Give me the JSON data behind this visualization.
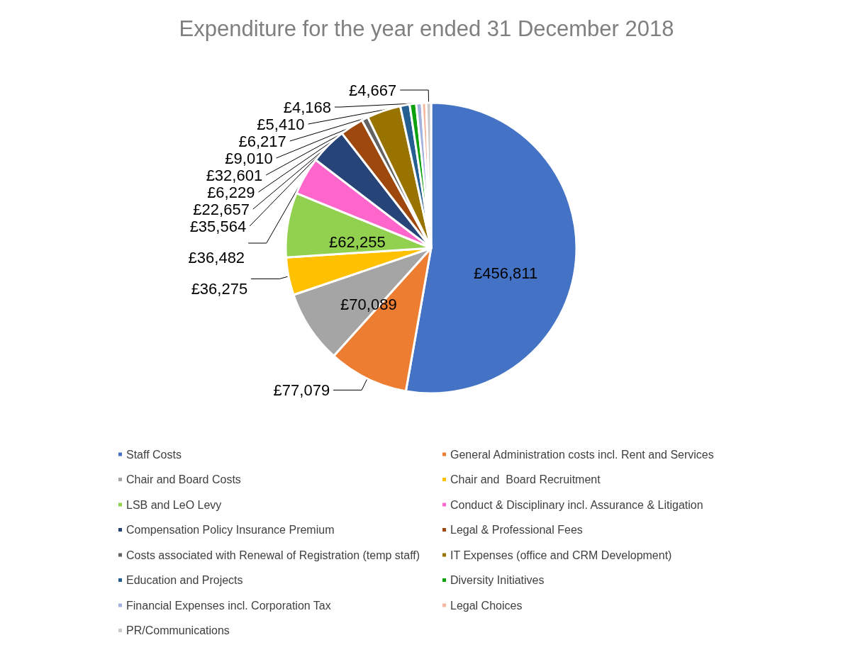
{
  "chart_data": {
    "type": "pie",
    "title": "Expenditure for the year ended 31 December 2018",
    "categories": [
      "Staff Costs",
      "General Administration costs incl. Rent and Services",
      "Chair and Board Costs",
      "Chair and  Board Recruitment",
      "LSB and LeO Levy",
      "Conduct & Disciplinary incl. Assurance & Litigation",
      "Compensation Policy Insurance Premium",
      "Legal & Professional Fees",
      "Costs associated with Renewal of Registration (temp staff)",
      "IT Expenses (office and CRM Development)",
      "Education and Projects",
      "Diversity Initiatives",
      "Financial Expenses incl. Corporation Tax",
      "Legal Choices",
      "PR/Communications"
    ],
    "values": [
      456811,
      77079,
      70089,
      36275,
      62255,
      36482,
      35564,
      22657,
      6229,
      32601,
      9010,
      6217,
      5410,
      4168,
      4667
    ],
    "colors": [
      "#4472c4",
      "#ed7d31",
      "#a5a5a5",
      "#ffc000",
      "#92d050",
      "#ff66cc",
      "#264478",
      "#9e480e",
      "#636363",
      "#997300",
      "#255e91",
      "#0da10d",
      "#a2b1de",
      "#f4b8a0",
      "#c9c9c9"
    ],
    "value_labels": [
      "£456,811",
      "£77,079",
      "£70,089",
      "£36,275",
      "£62,255",
      "£36,482",
      "£35,564",
      "£22,657",
      "£6,229",
      "£32,601",
      "£9,010",
      "£6,217",
      "£5,410",
      "£4,168",
      "£4,667"
    ],
    "legend": "bottom"
  }
}
